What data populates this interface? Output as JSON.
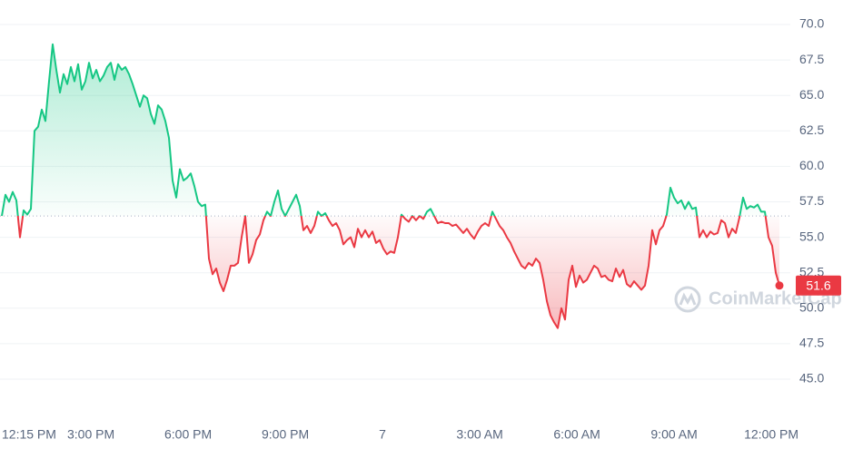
{
  "chart_data": {
    "type": "line",
    "values": [
      56.5,
      58.0,
      57.5,
      58.2,
      57.6,
      55.0,
      56.9,
      56.6,
      57.0,
      62.5,
      62.8,
      64.0,
      63.2,
      66.0,
      68.6,
      66.8,
      65.2,
      66.5,
      65.8,
      67.0,
      66.0,
      67.2,
      65.4,
      66.0,
      67.3,
      66.2,
      66.8,
      66.0,
      66.4,
      67.0,
      67.3,
      66.1,
      67.2,
      66.8,
      67.0,
      66.5,
      65.8,
      65.0,
      64.2,
      65.0,
      64.8,
      63.7,
      63.0,
      64.3,
      64.0,
      63.2,
      62.0,
      59.0,
      57.8,
      59.8,
      59.0,
      59.2,
      59.5,
      58.6,
      57.5,
      57.2,
      57.3,
      53.5,
      52.4,
      52.8,
      51.8,
      51.2,
      52.0,
      53.0,
      53.0,
      53.2,
      55.0,
      56.5,
      53.2,
      53.8,
      54.8,
      55.2,
      56.2,
      56.8,
      56.5,
      57.5,
      58.3,
      57.0,
      56.5,
      57.0,
      57.5,
      58.0,
      57.2,
      55.5,
      55.8,
      55.3,
      55.8,
      56.8,
      56.5,
      56.7,
      56.2,
      55.8,
      56.0,
      55.5,
      54.5,
      54.8,
      55.0,
      54.3,
      55.6,
      55.0,
      55.5,
      55.0,
      55.4,
      54.6,
      54.8,
      54.2,
      53.8,
      54.0,
      53.9,
      55.0,
      56.6,
      56.3,
      56.1,
      56.5,
      56.2,
      56.5,
      56.3,
      56.8,
      57.0,
      56.5,
      56.0,
      56.1,
      56.0,
      56.0,
      55.8,
      55.9,
      55.6,
      55.3,
      55.6,
      55.2,
      54.9,
      55.4,
      55.8,
      56.0,
      55.8,
      56.8,
      56.3,
      55.8,
      55.5,
      55.0,
      54.6,
      54.0,
      53.5,
      53.0,
      52.8,
      53.2,
      53.0,
      53.5,
      53.2,
      52.0,
      50.5,
      49.5,
      49.0,
      48.6,
      50.0,
      49.2,
      52.0,
      53.0,
      51.5,
      52.3,
      51.8,
      52.0,
      52.5,
      53.0,
      52.8,
      52.2,
      52.3,
      52.0,
      51.9,
      52.8,
      52.2,
      52.7,
      51.7,
      51.5,
      51.9,
      51.6,
      51.3,
      51.6,
      53.0,
      55.5,
      54.5,
      55.5,
      55.8,
      56.6,
      58.5,
      57.8,
      57.4,
      57.6,
      57.0,
      57.5,
      57.0,
      57.1,
      55.0,
      55.5,
      55.0,
      55.4,
      55.2,
      55.3,
      56.2,
      56.0,
      55.0,
      55.6,
      55.3,
      56.4,
      57.8,
      57.0,
      57.2,
      57.1,
      57.3,
      56.8,
      56.8,
      55.0,
      54.4,
      52.5,
      51.6
    ],
    "baseline": 56.5,
    "up_color": "#16c784",
    "down_color": "#ea3943",
    "xticks": [
      "12:15 PM",
      "3:00 PM",
      "6:00 PM",
      "9:00 PM",
      "7",
      "3:00 AM",
      "6:00 AM",
      "9:00 AM",
      "12:00 PM"
    ],
    "ylim": [
      42.5,
      71.25
    ],
    "yticks": [
      {
        "value": 45,
        "label": "45.0"
      },
      47.5,
      {
        "value": 50,
        "label": "50.0"
      },
      52.5,
      {
        "value": 55,
        "label": "55.0"
      },
      57.5,
      {
        "value": 60,
        "label": "60.0"
      },
      62.5,
      {
        "value": 65,
        "label": "65.0"
      },
      67.5,
      {
        "value": 70,
        "label": "70.0"
      }
    ],
    "grid": true,
    "watermark": "CoinMarketCap"
  }
}
